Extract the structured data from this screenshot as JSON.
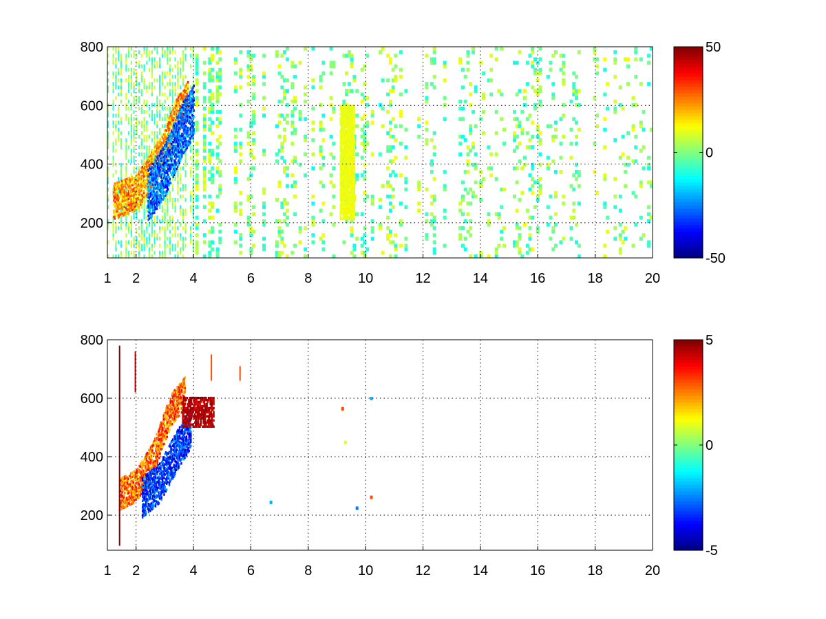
{
  "chart_data": [
    {
      "type": "heatmap",
      "title": "",
      "xlabel": "",
      "ylabel": "",
      "xlim": [
        1,
        20
      ],
      "ylim": [
        80,
        800
      ],
      "x_ticks": [
        1,
        2,
        4,
        6,
        8,
        10,
        12,
        14,
        16,
        18,
        20
      ],
      "y_ticks": [
        200,
        400,
        600,
        800
      ],
      "grid": true,
      "colorbar": {
        "min": -50,
        "max": 50,
        "ticks": [
          -50,
          0,
          50
        ],
        "colormap": "jet"
      },
      "sparse_background_value_range": [
        -12,
        12
      ],
      "background_fill_fraction_by_x": [
        [
          1,
          0.55
        ],
        [
          4,
          0.55
        ],
        [
          6,
          0.22
        ],
        [
          20,
          0.13
        ]
      ],
      "clusters": [
        {
          "name": "warm ridge",
          "x_range": [
            1.2,
            3.8
          ],
          "y_center_at_x": [
            [
              1.2,
              270
            ],
            [
              2.0,
              300
            ],
            [
              2.8,
              420
            ],
            [
              3.4,
              560
            ],
            [
              3.8,
              620
            ]
          ],
          "y_halfwidth": 60,
          "value_range": [
            10,
            35
          ]
        },
        {
          "name": "cool ridge",
          "x_range": [
            2.4,
            4.0
          ],
          "y_center_at_x": [
            [
              2.4,
              290
            ],
            [
              3.0,
              380
            ],
            [
              3.6,
              520
            ],
            [
              4.0,
              580
            ]
          ],
          "y_halfwidth": 90,
          "value_range": [
            -40,
            -15
          ]
        },
        {
          "name": "yellow streak",
          "x_range": [
            9.1,
            9.6
          ],
          "y_range": [
            210,
            600
          ],
          "value_range": [
            8,
            14
          ]
        }
      ]
    },
    {
      "type": "heatmap",
      "title": "",
      "xlabel": "",
      "ylabel": "",
      "xlim": [
        1,
        20
      ],
      "ylim": [
        80,
        800
      ],
      "x_ticks": [
        1,
        2,
        4,
        6,
        8,
        10,
        12,
        14,
        16,
        18,
        20
      ],
      "y_ticks": [
        200,
        400,
        600,
        800
      ],
      "grid": true,
      "colorbar": {
        "min": -5,
        "max": 5,
        "ticks": [
          -5,
          0,
          5
        ],
        "colormap": "jet"
      },
      "clusters": [
        {
          "name": "warm ridge",
          "x_range": [
            1.4,
            3.7
          ],
          "y_center_at_x": [
            [
              1.4,
              270
            ],
            [
              2.0,
              300
            ],
            [
              2.6,
              400
            ],
            [
              3.2,
              560
            ],
            [
              3.7,
              620
            ]
          ],
          "y_halfwidth": 55,
          "value_range": [
            1.5,
            4
          ]
        },
        {
          "name": "cool ridge",
          "x_range": [
            2.2,
            3.9
          ],
          "y_center_at_x": [
            [
              2.2,
              260
            ],
            [
              2.8,
              310
            ],
            [
              3.4,
              420
            ],
            [
              3.9,
              500
            ]
          ],
          "y_halfwidth": 70,
          "value_range": [
            -4.5,
            -2
          ]
        },
        {
          "name": "red patches",
          "x_range": [
            3.6,
            4.7
          ],
          "y_range": [
            500,
            600
          ],
          "value_range": [
            4,
            5
          ]
        }
      ],
      "isolated_cells": [
        {
          "x": 1.4,
          "y_range": [
            95,
            780
          ],
          "value": 5
        },
        {
          "x": 1.95,
          "y_range": [
            620,
            760
          ],
          "value": 4.5
        },
        {
          "x": 4.6,
          "y_range": [
            660,
            750
          ],
          "value": 3
        },
        {
          "x": 5.6,
          "y_range": [
            660,
            710
          ],
          "value": 3
        },
        {
          "x": 6.7,
          "y": 245,
          "value": -2
        },
        {
          "x": 9.3,
          "y": 450,
          "value": 1
        },
        {
          "x": 9.2,
          "y": 565,
          "value": 3
        },
        {
          "x": 9.7,
          "y": 225,
          "value": -2.5
        },
        {
          "x": 10.2,
          "y": 600,
          "value": -2
        },
        {
          "x": 10.2,
          "y": 262,
          "value": 3
        }
      ]
    }
  ]
}
